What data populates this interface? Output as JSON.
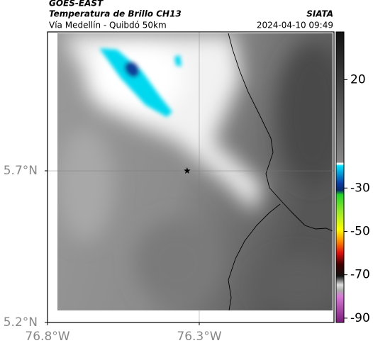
{
  "header": {
    "source": "GOES-EAST",
    "product": "Temperatura de Brillo CH13",
    "region": "Vía Medellín - Quibdó 50km",
    "org": "SIATA",
    "time": "2024-04-10 09:49"
  },
  "map": {
    "lonlim": [
      -76.8,
      -75.856
    ],
    "latlim": [
      5.2,
      6.158
    ],
    "lonticks": [
      {
        "value": -76.8,
        "label": "76.8°W"
      },
      {
        "value": -76.3,
        "label": "76.3°W"
      }
    ],
    "latticks": [
      {
        "value": 5.7,
        "label": "5.7°N"
      },
      {
        "value": 5.2,
        "label": "5.2°N"
      }
    ],
    "grid": true,
    "marker": {
      "lon": -76.34,
      "lat": 5.7
    }
  },
  "colorbar": {
    "limits": [
      -92,
      42
    ],
    "ticks": [
      20,
      -30,
      -50,
      -70,
      -90
    ]
  }
}
